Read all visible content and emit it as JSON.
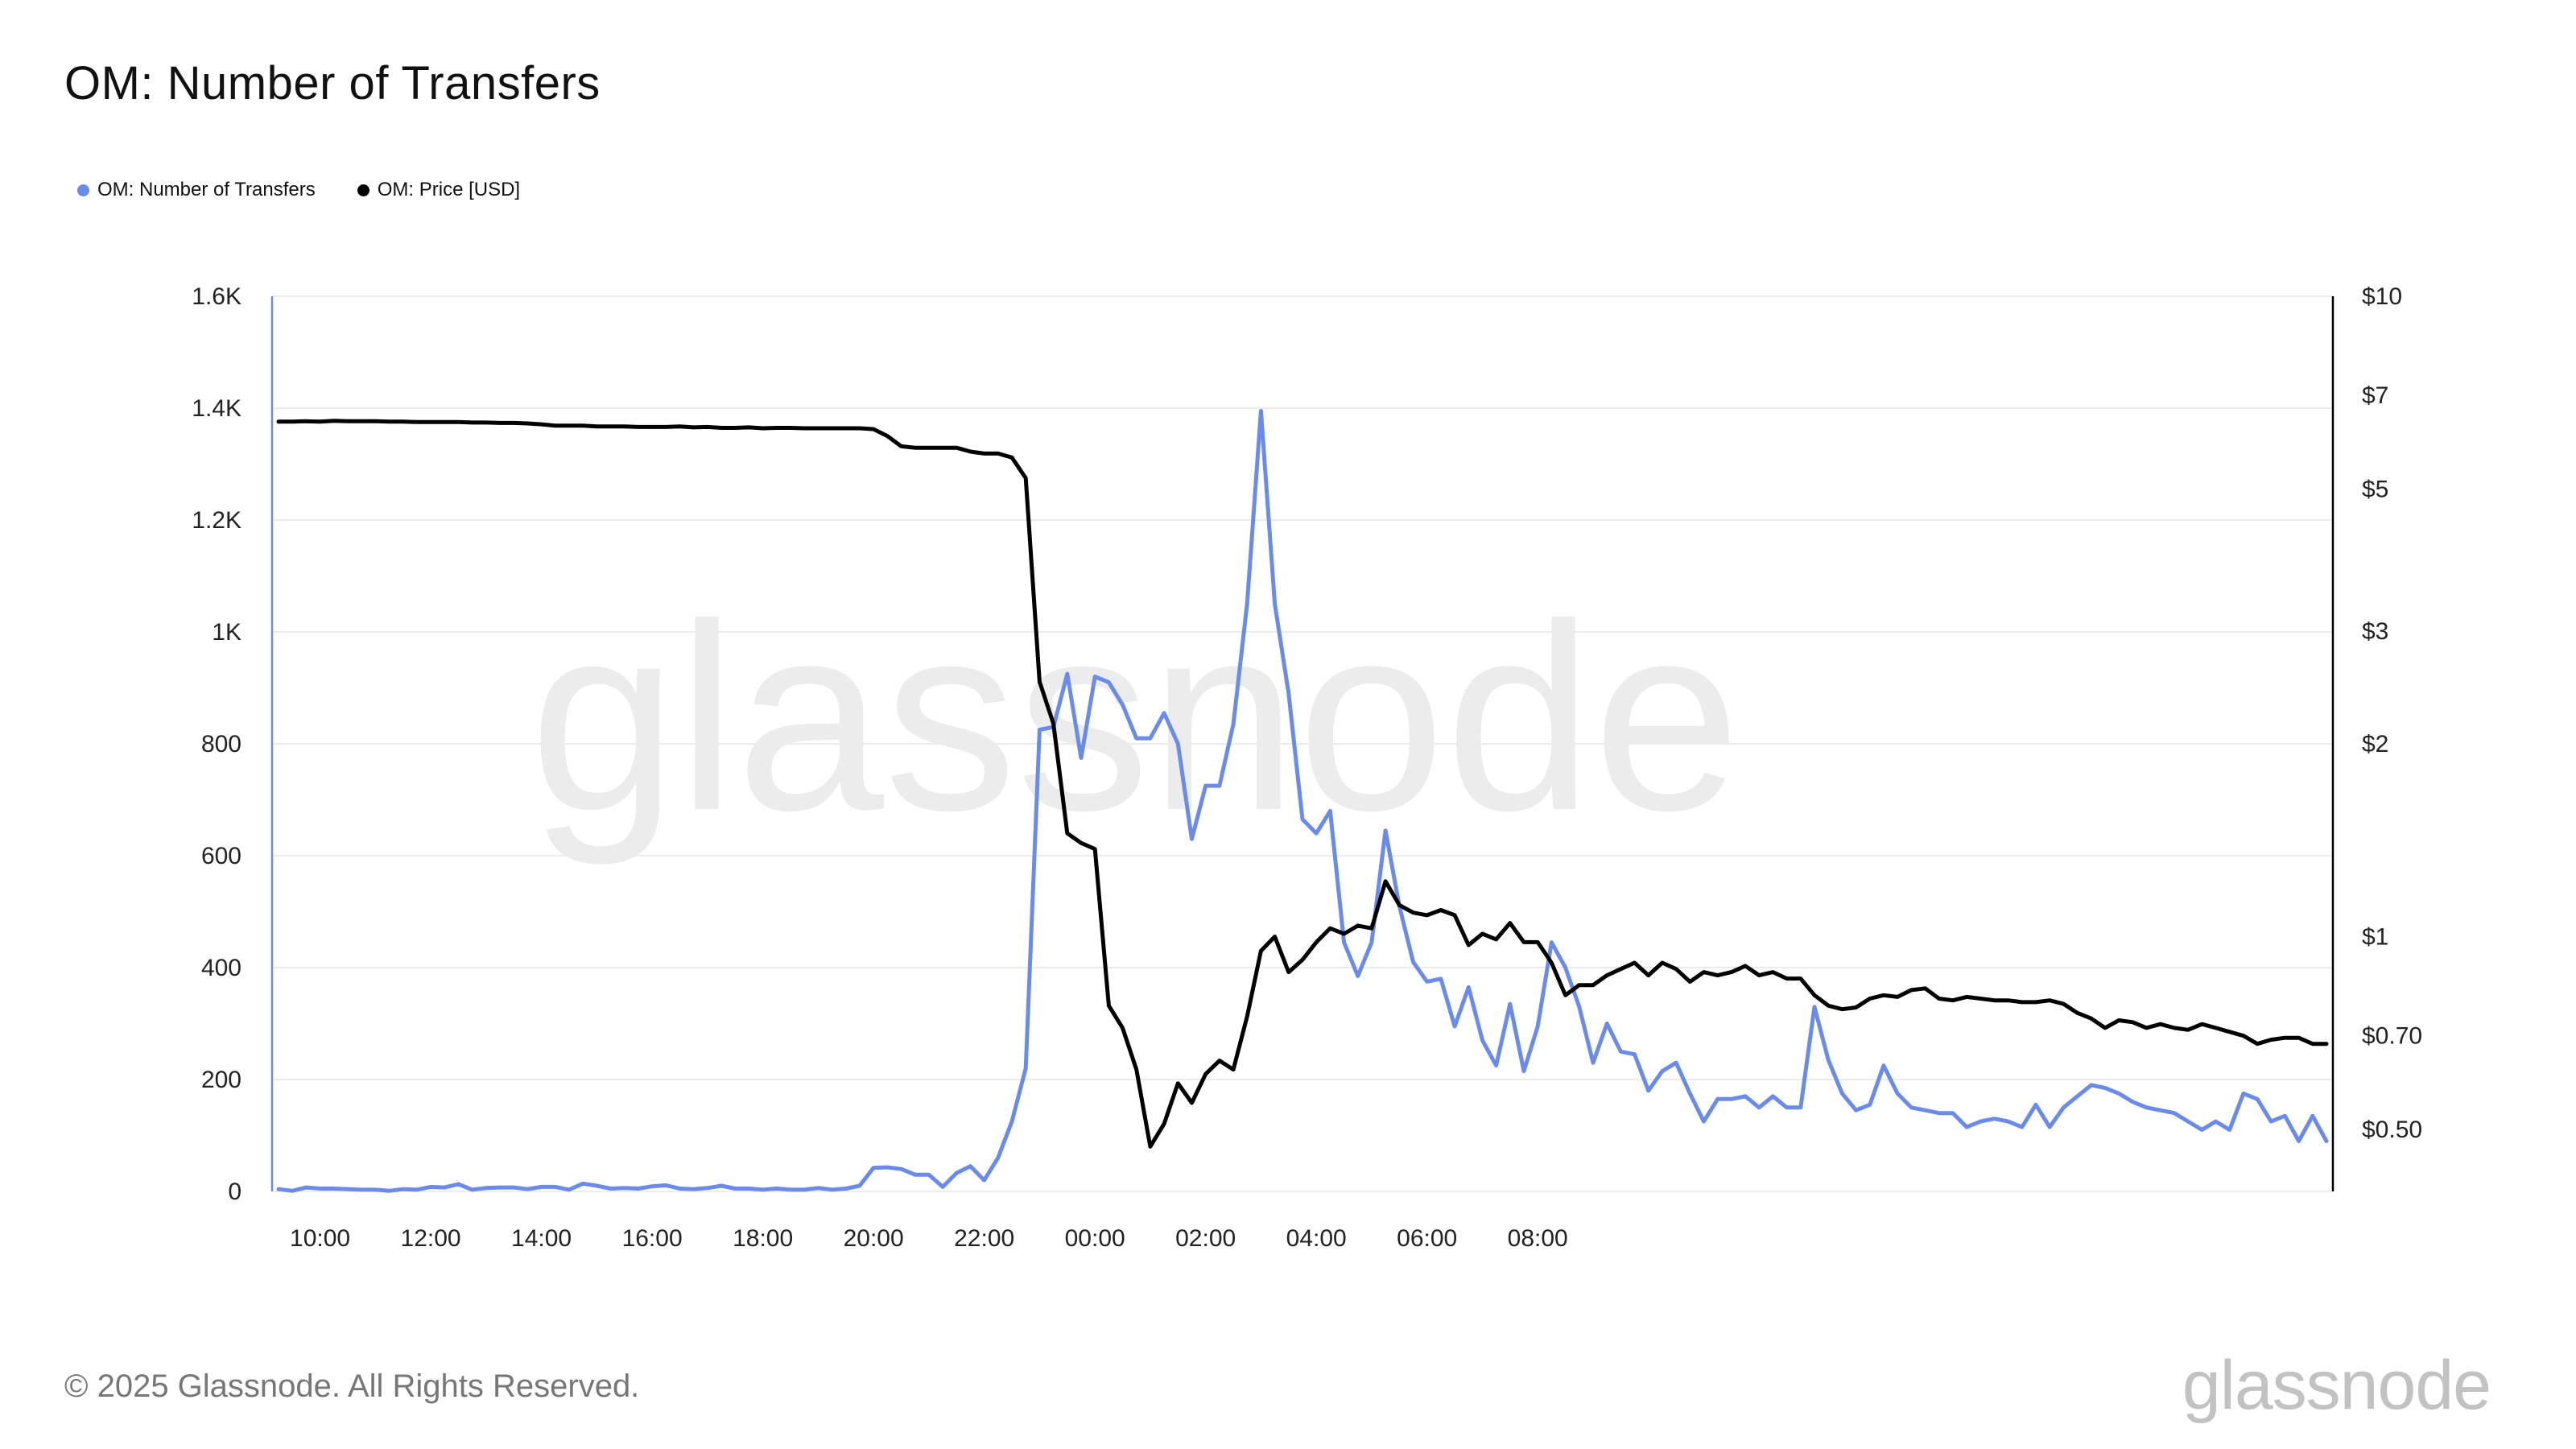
{
  "header": {
    "title": "OM: Number of Transfers"
  },
  "legend": [
    {
      "label": "OM: Number of Transfers",
      "color": "#6B8BEA"
    },
    {
      "label": "OM: Price [USD]",
      "color": "#000000"
    }
  ],
  "watermark": "glassnode",
  "footer": {
    "copyright": "© 2025 Glassnode. All Rights Reserved.",
    "logo": "glassnode"
  },
  "chart_data": {
    "type": "line",
    "title": "OM: Number of Transfers",
    "x_start_label": "09:15",
    "x_interval_hours": 0.25,
    "x_ticks": [
      "10:00",
      "12:00",
      "14:00",
      "16:00",
      "18:00",
      "20:00",
      "22:00",
      "00:00",
      "02:00",
      "04:00",
      "06:00",
      "08:00"
    ],
    "y_left": {
      "ticks": [
        "0",
        "200",
        "400",
        "600",
        "800",
        "1K",
        "1.2K",
        "1.4K",
        "1.6K"
      ],
      "range": [
        0,
        1600
      ]
    },
    "y_right": {
      "scale": "log",
      "ticks": [
        "$0.50",
        "$0.70",
        "$1",
        "$2",
        "$3",
        "$5",
        "$7",
        "$10"
      ],
      "tick_values": [
        0.5,
        0.7,
        1,
        2,
        3,
        5,
        7,
        10
      ],
      "range": [
        0.4,
        10
      ]
    },
    "grid": "horizontal",
    "legend_position": "top-left",
    "series": [
      {
        "name": "OM: Number of Transfers",
        "axis": "left",
        "color": "#6B8BEA",
        "values": [
          4,
          1,
          7,
          5,
          5,
          4,
          3,
          3,
          1,
          4,
          3,
          8,
          7,
          13,
          3,
          6,
          7,
          7,
          4,
          8,
          8,
          3,
          14,
          10,
          5,
          6,
          5,
          9,
          11,
          5,
          4,
          6,
          10,
          5,
          5,
          3,
          5,
          3,
          3,
          6,
          3,
          5,
          10,
          42,
          43,
          40,
          30,
          30,
          8,
          33,
          45,
          20,
          60,
          125,
          220,
          825,
          830,
          925,
          775,
          920,
          910,
          870,
          810,
          810,
          855,
          800,
          630,
          725,
          725,
          835,
          1050,
          1395,
          1050,
          890,
          665,
          640,
          680,
          445,
          385,
          445,
          645,
          510,
          410,
          375,
          380,
          295,
          365,
          270,
          225,
          335,
          215,
          295,
          445,
          400,
          330,
          230,
          300,
          250,
          245,
          180,
          215,
          230,
          175,
          125,
          165,
          165,
          170,
          150,
          170,
          150,
          150,
          330,
          235,
          175,
          145,
          155,
          225,
          175,
          150,
          145,
          140,
          140,
          115,
          125,
          130,
          125,
          115,
          155,
          115,
          150,
          170,
          190,
          185,
          175,
          160,
          150,
          145,
          140,
          125,
          110,
          125,
          110,
          175,
          165,
          125,
          135,
          90,
          135,
          90
        ]
      },
      {
        "name": "OM: Price [USD]",
        "axis": "right",
        "color": "#000000",
        "values": [
          6.37,
          6.37,
          6.38,
          6.37,
          6.39,
          6.38,
          6.38,
          6.38,
          6.37,
          6.37,
          6.36,
          6.36,
          6.36,
          6.36,
          6.35,
          6.35,
          6.34,
          6.34,
          6.33,
          6.31,
          6.28,
          6.28,
          6.28,
          6.26,
          6.26,
          6.26,
          6.25,
          6.25,
          6.25,
          6.26,
          6.24,
          6.25,
          6.23,
          6.23,
          6.24,
          6.22,
          6.23,
          6.23,
          6.22,
          6.22,
          6.22,
          6.22,
          6.22,
          6.2,
          6.05,
          5.83,
          5.8,
          5.8,
          5.8,
          5.8,
          5.72,
          5.68,
          5.68,
          5.6,
          5.2,
          2.5,
          2.15,
          1.45,
          1.4,
          1.37,
          0.78,
          0.72,
          0.62,
          0.47,
          0.51,
          0.59,
          0.55,
          0.61,
          0.64,
          0.62,
          0.75,
          0.95,
          1.0,
          0.88,
          0.92,
          0.98,
          1.03,
          1.01,
          1.04,
          1.03,
          1.22,
          1.12,
          1.09,
          1.08,
          1.1,
          1.08,
          0.97,
          1.01,
          0.99,
          1.05,
          0.98,
          0.98,
          0.91,
          0.81,
          0.84,
          0.84,
          0.87,
          0.89,
          0.91,
          0.87,
          0.91,
          0.89,
          0.85,
          0.88,
          0.87,
          0.88,
          0.9,
          0.87,
          0.88,
          0.86,
          0.86,
          0.81,
          0.78,
          0.77,
          0.775,
          0.8,
          0.81,
          0.805,
          0.825,
          0.83,
          0.8,
          0.795,
          0.805,
          0.8,
          0.795,
          0.795,
          0.79,
          0.79,
          0.795,
          0.785,
          0.76,
          0.745,
          0.72,
          0.74,
          0.735,
          0.72,
          0.73,
          0.72,
          0.715,
          0.73,
          0.72,
          0.71,
          0.7,
          0.68,
          0.69,
          0.695,
          0.695,
          0.68,
          0.68
        ]
      }
    ]
  }
}
